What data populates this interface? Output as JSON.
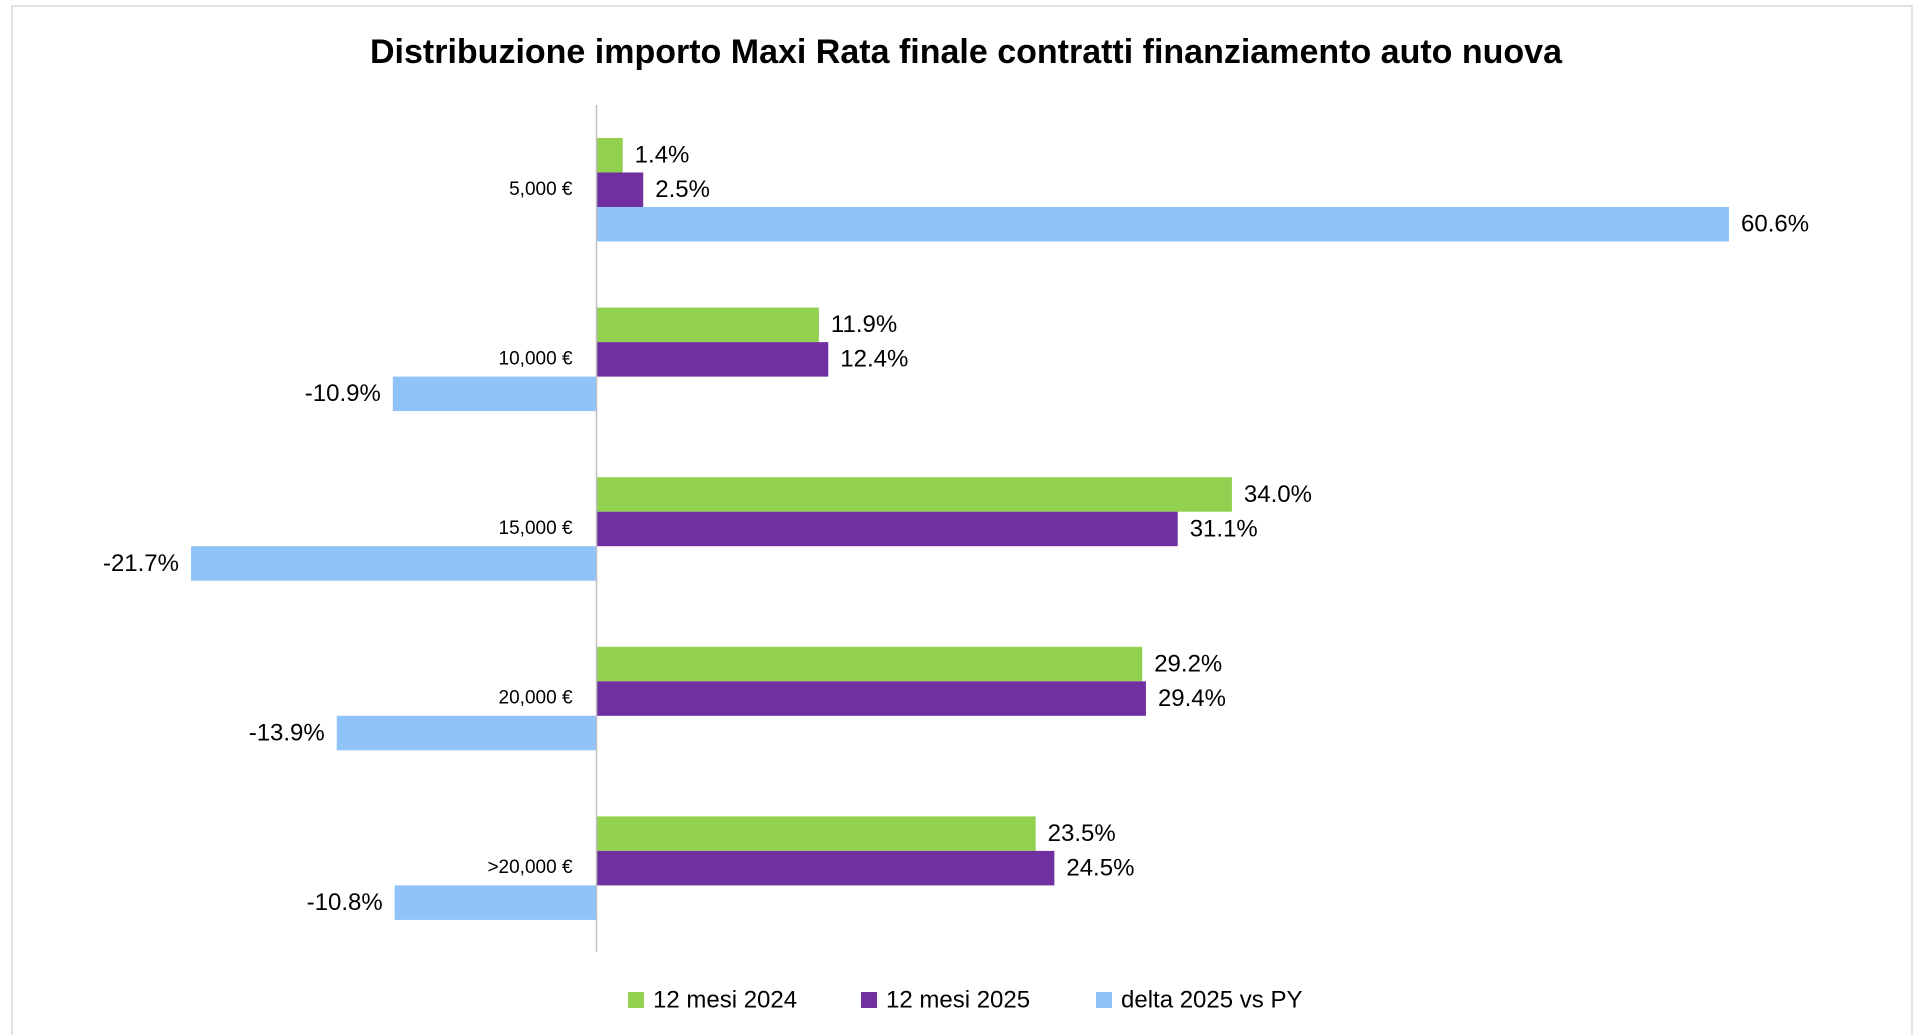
{
  "chart_data": {
    "type": "bar",
    "orientation": "horizontal",
    "title": "Distribuzione importo Maxi Rata finale contratti finanziamento auto nuova",
    "categories": [
      "5,000 €",
      "10,000 €",
      "15,000 €",
      "20,000 €",
      ">20,000 €"
    ],
    "series": [
      {
        "name": "12 mesi 2024",
        "color": "#92d050",
        "values": [
          1.4,
          11.9,
          34.0,
          29.2,
          23.5
        ],
        "value_labels": [
          "1.4%",
          "11.9%",
          "34.0%",
          "29.2%",
          "23.5%"
        ]
      },
      {
        "name": "12 mesi 2025",
        "color": "#7030a0",
        "values": [
          2.5,
          12.4,
          31.1,
          29.4,
          24.5
        ],
        "value_labels": [
          "2.5%",
          "12.4%",
          "31.1%",
          "29.4%",
          "24.5%"
        ]
      },
      {
        "name": "delta 2025 vs PY",
        "color": "#8fc3f9",
        "values": [
          60.6,
          -10.9,
          -21.7,
          -13.9,
          -10.8
        ],
        "value_labels": [
          "60.6%",
          "-10.9%",
          "-21.7%",
          "-13.9%",
          "-10.8%"
        ]
      }
    ],
    "legend": "bottom"
  }
}
